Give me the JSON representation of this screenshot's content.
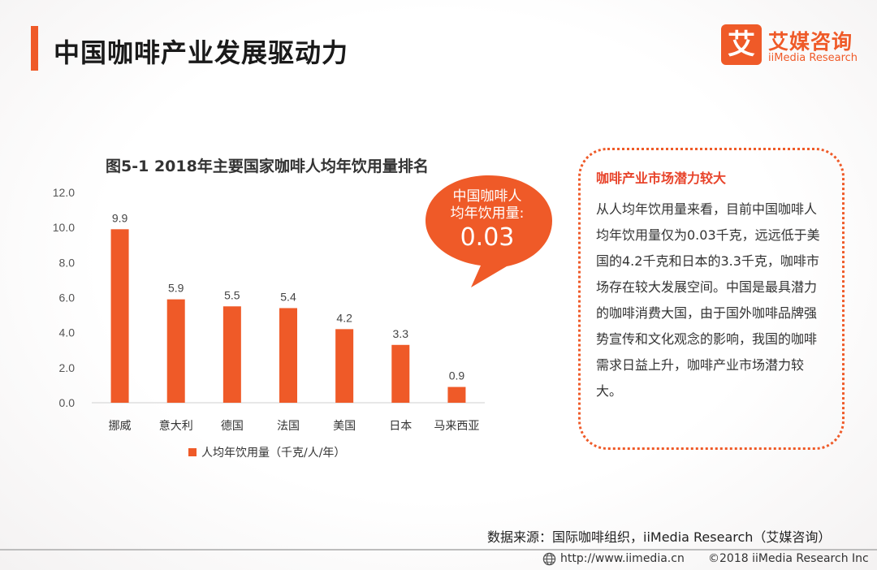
{
  "header": {
    "title": "中国咖啡产业发展驱动力",
    "accent_color": "#ef5a28"
  },
  "logo": {
    "mark": "艾",
    "name_cn": "艾媒咨询",
    "name_en": "iiMedia Research"
  },
  "chart_data": {
    "type": "bar",
    "title": "图5-1 2018年主要国家咖啡人均年饮用量排名",
    "categories": [
      "挪威",
      "意大利",
      "德国",
      "法国",
      "美国",
      "日本",
      "马来西亚"
    ],
    "series": [
      {
        "name": "人均年饮用量（千克/人/年）",
        "values": [
          9.9,
          5.9,
          5.5,
          5.4,
          4.2,
          3.3,
          0.9
        ],
        "color": "#ef5a28"
      }
    ],
    "data_labels": [
      "9.9",
      "5.9",
      "5.5",
      "5.4",
      "4.2",
      "3.3",
      "0.9"
    ],
    "ylim": [
      0,
      12
    ],
    "yticks": [
      "0.0",
      "2.0",
      "4.0",
      "6.0",
      "8.0",
      "10.0",
      "12.0"
    ],
    "legend_position": "bottom",
    "grid": false
  },
  "callout": {
    "line1": "中国咖啡人",
    "line2": "均年饮用量:",
    "value": "0.03",
    "color": "#ef5a28"
  },
  "panel": {
    "title": "咖啡产业市场潜力较大",
    "body": "从人均年饮用量来看，目前中国咖啡人均年饮用量仅为0.03千克，远远低于美国的4.2千克和日本的3.3千克，咖啡市场存在较大发展空间。中国是最具潜力的咖啡消费大国，由于国外咖啡品牌强势宣传和文化观念的影响，我国的咖啡需求日益上升，咖啡产业市场潜力较大。"
  },
  "source": "数据来源：国际咖啡组织，iiMedia Research（艾媒咨询）",
  "footer": {
    "url": "http://www.iimedia.cn",
    "copyright": "©2018  iiMedia Research  Inc",
    "globe_icon": "globe-icon"
  }
}
